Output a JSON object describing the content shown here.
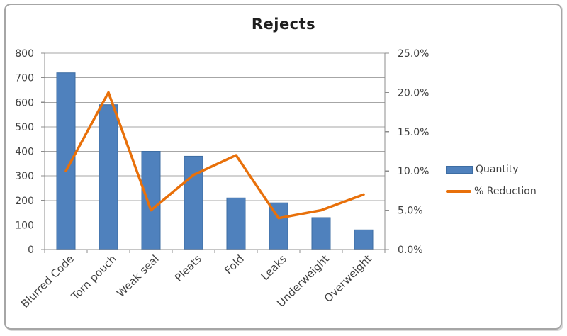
{
  "title": "Rejects",
  "colors": {
    "bar_fill": "#4f81bd",
    "bar_border": "#3d6da3",
    "line_stroke": "#e8700a",
    "gridline": "#a6a6a6",
    "axis_line": "#8c8c8c",
    "tick_text": "#404040",
    "title_text": "#1f1f1f",
    "frame_border": "#a6a6a6",
    "background": "#ffffff"
  },
  "legend": {
    "position": "right",
    "items": [
      {
        "label": "Quantity",
        "swatch": "bar-swatch"
      },
      {
        "label": "% Reduction",
        "swatch": "line-swatch"
      }
    ]
  },
  "chart_data": {
    "type": "combo-bar-line",
    "title": "Rejects",
    "categories": [
      "Blurred Code",
      "Torn pouch",
      "Weak seal",
      "Pleats",
      "Fold",
      "Leaks",
      "Underweight",
      "Overweight"
    ],
    "series": [
      {
        "name": "Quantity",
        "type": "bar",
        "axis": "left",
        "values": [
          720,
          590,
          400,
          380,
          210,
          190,
          130,
          80
        ]
      },
      {
        "name": "% Reduction",
        "type": "line",
        "axis": "right",
        "values": [
          10,
          20,
          5,
          9.5,
          12,
          4,
          5,
          7
        ],
        "unit": "%"
      }
    ],
    "left_axis": {
      "min": 0,
      "max": 800,
      "step": 100,
      "tick_labels": [
        "0",
        "100",
        "200",
        "300",
        "400",
        "500",
        "600",
        "700",
        "800"
      ]
    },
    "right_axis": {
      "min": 0,
      "max": 25,
      "step": 5,
      "tick_labels": [
        "0.0%",
        "5.0%",
        "10.0%",
        "15.0%",
        "20.0%",
        "25.0%"
      ]
    },
    "grid": "horizontal",
    "legend_position": "right"
  }
}
